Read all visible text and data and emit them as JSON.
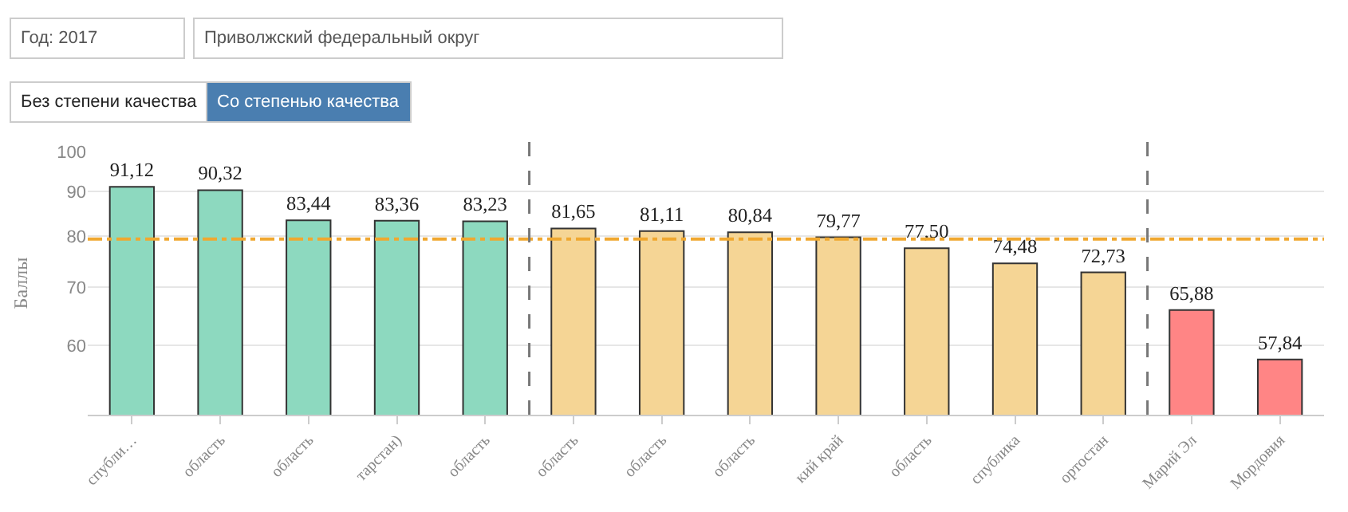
{
  "chart_data": {
    "type": "bar",
    "ylabel": "Баллы",
    "annotations": [
      "Год: 2017",
      "Приволжский федеральный округ",
      "Без степени качества",
      "Со степенью качества"
    ],
    "categories": [
      "спубли…",
      "область",
      "область",
      "тарстан)",
      "область",
      "область",
      "область",
      "область",
      "кий край",
      "область",
      "спублика",
      "ортостан",
      "Марий Эл",
      "Мордовия"
    ],
    "values": [
      91.12,
      90.32,
      83.44,
      83.36,
      83.23,
      81.65,
      81.11,
      80.84,
      79.77,
      77.5,
      74.48,
      72.73,
      65.88,
      57.84
    ],
    "value_labels": [
      "91,12",
      "90,32",
      "83,44",
      "83,36",
      "83,23",
      "81,65",
      "81,11",
      "80,84",
      "79,77",
      "77,50",
      "74,48",
      "72,73",
      "65,88",
      "57,84"
    ],
    "colors": [
      "#8dd9bf",
      "#8dd9bf",
      "#8dd9bf",
      "#8dd9bf",
      "#8dd9bf",
      "#f5d595",
      "#f5d595",
      "#f5d595",
      "#f5d595",
      "#f5d595",
      "#f5d595",
      "#f5d595",
      "#ff8585",
      "#ff8585"
    ],
    "ylim": [
      50,
      100
    ],
    "yticks": [
      60,
      70,
      80,
      90,
      100
    ],
    "log": "y",
    "grid": "y",
    "ref_lines": [
      {
        "axis": "y",
        "value": 79.4,
        "color": "#f0a830",
        "line_style": "dashdot"
      }
    ]
  }
}
